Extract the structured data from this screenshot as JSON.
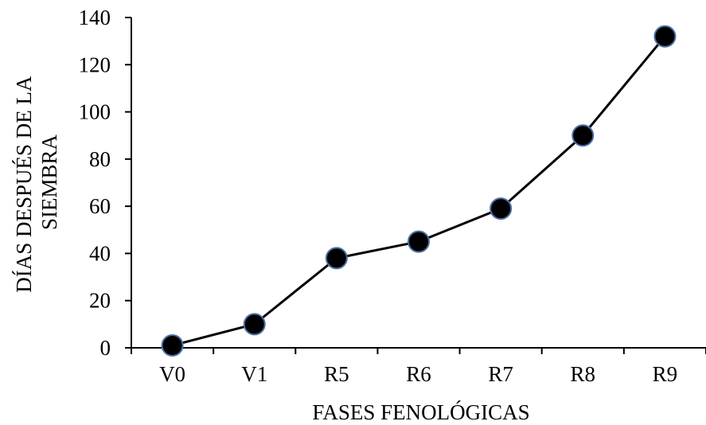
{
  "chart_data": {
    "type": "line",
    "title": "",
    "xlabel": "FASES FENOLÓGICAS",
    "ylabel_lines": [
      "DÍAS DESPUÉS DE LA",
      "SIEMBRA"
    ],
    "categories": [
      "V0",
      "V1",
      "R5",
      "R6",
      "R7",
      "R8",
      "R9"
    ],
    "series": [
      {
        "values": [
          1,
          10,
          38,
          45,
          59,
          90,
          132
        ]
      }
    ],
    "ylim": [
      0,
      140
    ],
    "yticks": [
      0,
      20,
      40,
      60,
      80,
      100,
      120,
      140
    ],
    "ytick_labels": [
      "0",
      "20",
      "40",
      "60",
      "80",
      "100",
      "120",
      "140"
    ],
    "grid": false,
    "legend": "none",
    "colors": {
      "line": "#000000",
      "marker_fill": "#000000",
      "marker_edge": "#4a6fa5",
      "axis": "#000000"
    }
  }
}
